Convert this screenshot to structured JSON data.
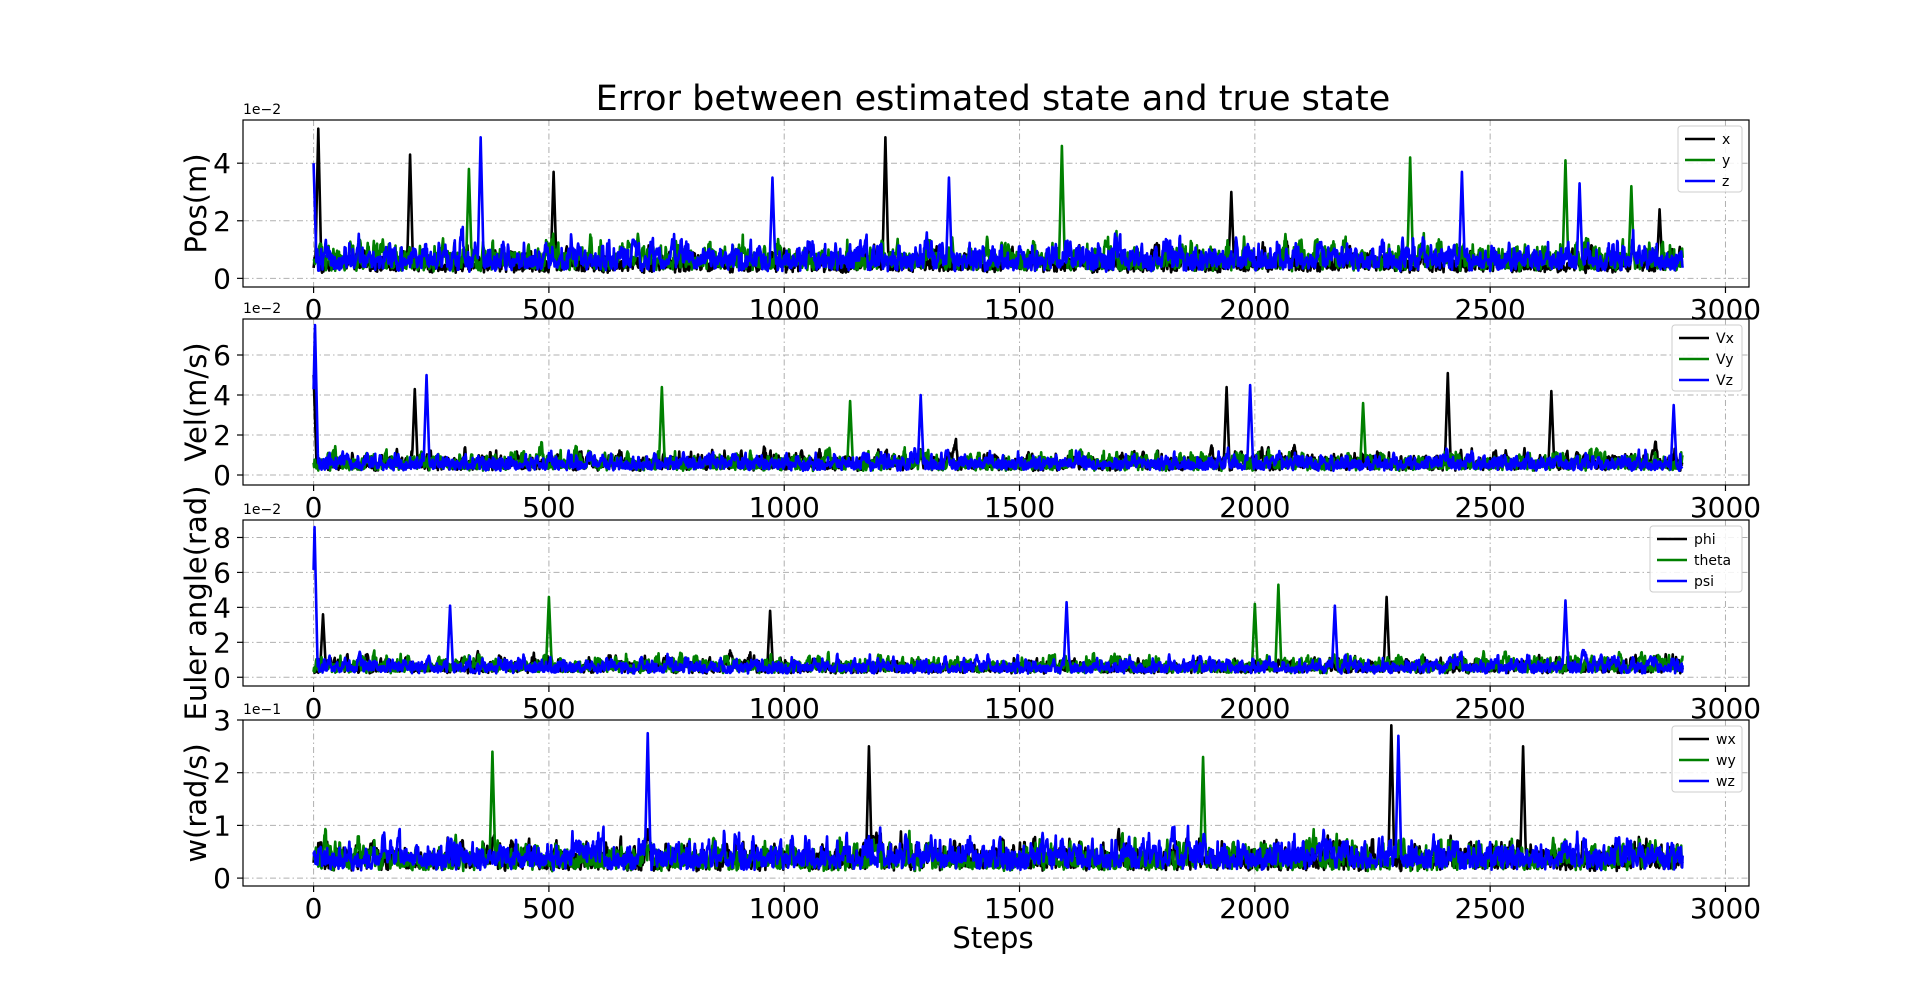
{
  "title": "Error between estimated state and true state",
  "xlabel": "Steps",
  "colors": {
    "axes": "#000000",
    "grid": "#b0b0b0",
    "legend_border": "#cccccc"
  },
  "chart_data": [
    {
      "type": "line",
      "ylabel": "Pos(m)",
      "scale_text": "1e−2",
      "xlim": [
        -150,
        3050
      ],
      "ylim": [
        -0.3,
        5.5
      ],
      "xticks": [
        0,
        500,
        1000,
        1500,
        2000,
        2500,
        3000
      ],
      "yticks": [
        0,
        2,
        4
      ],
      "grid": true,
      "legend_position": "top-right",
      "n_steps": 2910,
      "series": [
        {
          "name": "x",
          "color": "#000000",
          "typical": 0.7,
          "max": 5.2,
          "spikes": [
            [
              10,
              5.2
            ],
            [
              205,
              4.3
            ],
            [
              510,
              3.7
            ],
            [
              1215,
              4.9
            ],
            [
              1950,
              3.0
            ],
            [
              2860,
              2.4
            ]
          ]
        },
        {
          "name": "y",
          "color": "#008000",
          "typical": 0.9,
          "max": 4.6,
          "spikes": [
            [
              330,
              3.8
            ],
            [
              1590,
              4.6
            ],
            [
              2330,
              4.2
            ],
            [
              2660,
              4.1
            ],
            [
              2800,
              3.2
            ]
          ]
        },
        {
          "name": "z",
          "color": "#0000ff",
          "typical": 0.9,
          "max": 4.9,
          "spikes": [
            [
              0,
              4.0
            ],
            [
              355,
              4.9
            ],
            [
              975,
              3.5
            ],
            [
              1350,
              3.5
            ],
            [
              2440,
              3.7
            ],
            [
              2690,
              3.3
            ]
          ]
        }
      ]
    },
    {
      "type": "line",
      "ylabel": "Vel(m/s)",
      "scale_text": "1e−2",
      "xlim": [
        -150,
        3050
      ],
      "ylim": [
        -0.5,
        7.8
      ],
      "xticks": [
        0,
        500,
        1000,
        1500,
        2000,
        2500,
        3000
      ],
      "yticks": [
        0,
        2,
        4,
        6
      ],
      "grid": true,
      "legend_position": "top-right",
      "n_steps": 2910,
      "series": [
        {
          "name": "Vx",
          "color": "#000000",
          "typical": 0.8,
          "max": 5.1,
          "spikes": [
            [
              0,
              5.0
            ],
            [
              215,
              4.3
            ],
            [
              1940,
              4.4
            ],
            [
              2410,
              5.1
            ],
            [
              2630,
              4.2
            ]
          ]
        },
        {
          "name": "Vy",
          "color": "#008000",
          "typical": 0.8,
          "max": 4.4,
          "spikes": [
            [
              740,
              4.4
            ],
            [
              1140,
              3.7
            ],
            [
              2230,
              3.6
            ]
          ]
        },
        {
          "name": "Vz",
          "color": "#0000ff",
          "typical": 0.8,
          "max": 7.5,
          "spikes": [
            [
              3,
              7.5
            ],
            [
              240,
              5.0
            ],
            [
              1290,
              4.0
            ],
            [
              1990,
              4.5
            ],
            [
              2890,
              3.5
            ]
          ]
        }
      ]
    },
    {
      "type": "line",
      "ylabel": "Euler angle(rad)",
      "scale_text": "1e−2",
      "xlim": [
        -150,
        3050
      ],
      "ylim": [
        -0.5,
        9.0
      ],
      "xticks": [
        0,
        500,
        1000,
        1500,
        2000,
        2500,
        3000
      ],
      "yticks": [
        0,
        2,
        4,
        6,
        8
      ],
      "grid": true,
      "legend_position": "top-right",
      "n_steps": 2910,
      "series": [
        {
          "name": "phi",
          "color": "#000000",
          "typical": 0.8,
          "max": 4.6,
          "spikes": [
            [
              20,
              3.6
            ],
            [
              970,
              3.8
            ],
            [
              2280,
              4.6
            ]
          ]
        },
        {
          "name": "theta",
          "color": "#008000",
          "typical": 0.9,
          "max": 5.3,
          "spikes": [
            [
              500,
              4.6
            ],
            [
              2000,
              4.2
            ],
            [
              2050,
              5.3
            ]
          ]
        },
        {
          "name": "psi",
          "color": "#0000ff",
          "typical": 0.8,
          "max": 8.6,
          "spikes": [
            [
              2,
              8.6
            ],
            [
              290,
              4.1
            ],
            [
              1600,
              4.3
            ],
            [
              2170,
              4.1
            ],
            [
              2660,
              4.4
            ]
          ]
        }
      ]
    },
    {
      "type": "line",
      "ylabel": "w(rad/s)",
      "scale_text": "1e−1",
      "xlim": [
        -150,
        3050
      ],
      "ylim": [
        -0.15,
        3.0
      ],
      "xticks": [
        0,
        500,
        1000,
        1500,
        2000,
        2500,
        3000
      ],
      "yticks": [
        0,
        1,
        2,
        3
      ],
      "grid": true,
      "legend_position": "top-right",
      "n_steps": 2910,
      "series": [
        {
          "name": "wx",
          "color": "#000000",
          "typical": 0.5,
          "max": 2.9,
          "spikes": [
            [
              1180,
              2.5
            ],
            [
              2290,
              2.9
            ],
            [
              2570,
              2.5
            ]
          ]
        },
        {
          "name": "wy",
          "color": "#008000",
          "typical": 0.5,
          "max": 2.4,
          "spikes": [
            [
              380,
              2.4
            ],
            [
              1890,
              2.3
            ]
          ]
        },
        {
          "name": "wz",
          "color": "#0000ff",
          "typical": 0.55,
          "max": 2.8,
          "spikes": [
            [
              710,
              2.75
            ],
            [
              2305,
              2.7
            ]
          ]
        }
      ]
    }
  ]
}
